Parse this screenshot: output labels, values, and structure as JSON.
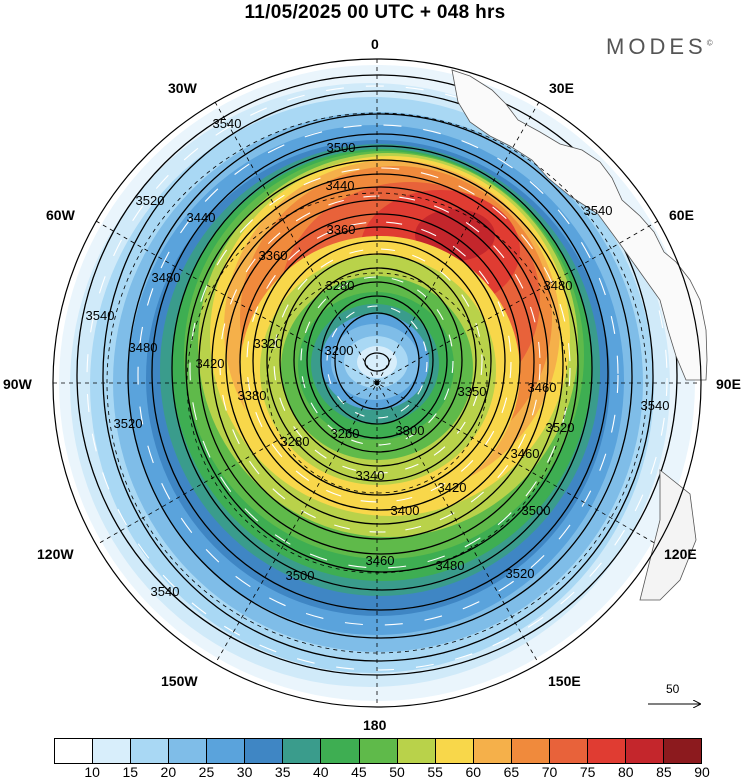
{
  "title": "11/05/2025  00 UTC  + 048 hrs",
  "logo": "MODES",
  "logo_mark": "©",
  "longitude_labels": {
    "lon_0": "0",
    "lon_30e": "30E",
    "lon_60e": "60E",
    "lon_90e": "90E",
    "lon_120e": "120E",
    "lon_150e": "150E",
    "lon_180": "180",
    "lon_150w": "150W",
    "lon_120w": "120W",
    "lon_90w": "90W",
    "lon_60w": "60W",
    "lon_30w": "30W"
  },
  "contour_labels": [
    "3540",
    "3500",
    "3440",
    "3360",
    "3280",
    "3200",
    "3540",
    "3520",
    "3480",
    "3440",
    "3360",
    "3320",
    "3480",
    "3420",
    "3380",
    "3280",
    "3260",
    "3300",
    "3340",
    "3400",
    "3420",
    "3460",
    "3500",
    "3480",
    "3520",
    "3500",
    "3460",
    "3350",
    "3460",
    "3540",
    "3520",
    "3540",
    "3480",
    "3520",
    "3540"
  ],
  "colorbar": {
    "colors": [
      "#ffffff",
      "#d8eefb",
      "#a9d8f4",
      "#7fbde8",
      "#5aa3dc",
      "#3f86c4",
      "#3a9c8c",
      "#3eae52",
      "#5fba4a",
      "#b9d24a",
      "#f8d74a",
      "#f5b04a",
      "#f08a3c",
      "#e8623a",
      "#e03c32",
      "#c4262c",
      "#8c1a1e"
    ],
    "labels": [
      "10",
      "15",
      "20",
      "25",
      "30",
      "35",
      "40",
      "45",
      "50",
      "55",
      "60",
      "65",
      "70",
      "75",
      "80",
      "85",
      "90"
    ]
  },
  "reference_vector": {
    "label": "50"
  }
}
